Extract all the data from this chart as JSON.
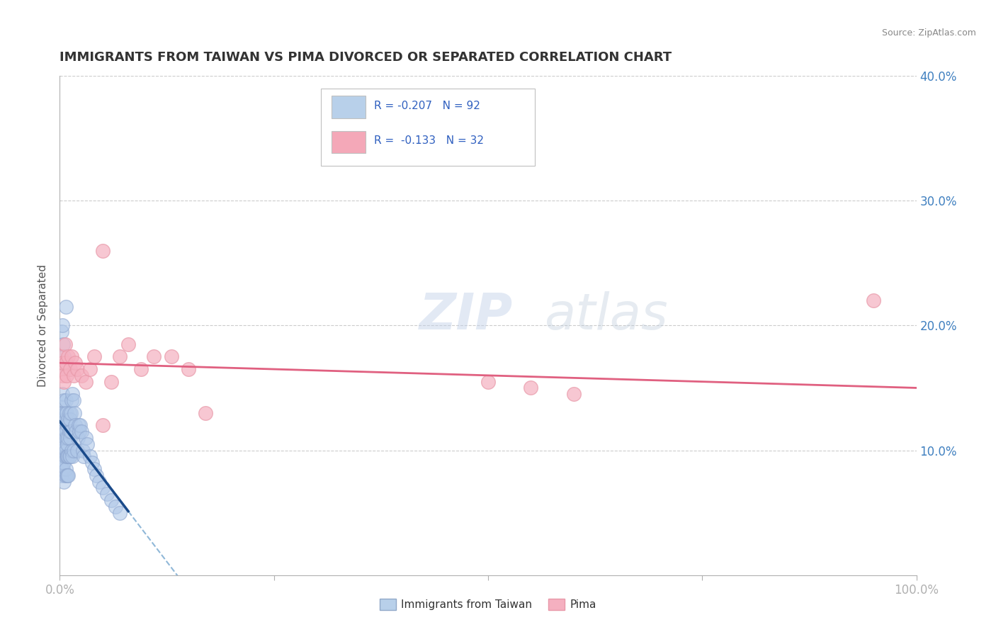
{
  "title": "IMMIGRANTS FROM TAIWAN VS PIMA DIVORCED OR SEPARATED CORRELATION CHART",
  "source": "Source: ZipAtlas.com",
  "ylabel": "Divorced or Separated",
  "legend_series": [
    {
      "label": "R = -0.207   N = 92",
      "color": "#b8d0ea"
    },
    {
      "label": "R =  -0.133   N = 32",
      "color": "#f4a8b8"
    }
  ],
  "legend_bottom": [
    {
      "label": "Immigrants from Taiwan",
      "color": "#b8d0ea"
    },
    {
      "label": "Pima",
      "color": "#f4a8b8"
    }
  ],
  "xlim": [
    0.0,
    1.0
  ],
  "ylim": [
    0.0,
    0.4
  ],
  "xticks": [
    0.0,
    0.25,
    0.5,
    0.75,
    1.0
  ],
  "xticklabels": [
    "0.0%",
    "",
    "",
    "",
    "100.0%"
  ],
  "ytick_positions": [
    0.1,
    0.2,
    0.3,
    0.4
  ],
  "ytick_labels": [
    "10.0%",
    "20.0%",
    "30.0%",
    "40.0%"
  ],
  "background_color": "#ffffff",
  "grid_color": "#cccccc",
  "blue_scatter_x": [
    0.001,
    0.001,
    0.001,
    0.001,
    0.001,
    0.002,
    0.002,
    0.002,
    0.002,
    0.002,
    0.002,
    0.003,
    0.003,
    0.003,
    0.003,
    0.003,
    0.003,
    0.004,
    0.004,
    0.004,
    0.004,
    0.004,
    0.005,
    0.005,
    0.005,
    0.005,
    0.005,
    0.006,
    0.006,
    0.006,
    0.006,
    0.006,
    0.007,
    0.007,
    0.007,
    0.007,
    0.007,
    0.008,
    0.008,
    0.008,
    0.008,
    0.009,
    0.009,
    0.009,
    0.009,
    0.01,
    0.01,
    0.01,
    0.01,
    0.011,
    0.011,
    0.011,
    0.012,
    0.012,
    0.012,
    0.013,
    0.013,
    0.014,
    0.014,
    0.015,
    0.015,
    0.016,
    0.016,
    0.017,
    0.018,
    0.019,
    0.02,
    0.021,
    0.022,
    0.023,
    0.024,
    0.025,
    0.027,
    0.028,
    0.03,
    0.032,
    0.035,
    0.038,
    0.04,
    0.043,
    0.046,
    0.05,
    0.055,
    0.06,
    0.065,
    0.07,
    0.002,
    0.003,
    0.004,
    0.005,
    0.006,
    0.007
  ],
  "blue_scatter_y": [
    0.11,
    0.12,
    0.135,
    0.095,
    0.09,
    0.1,
    0.115,
    0.125,
    0.09,
    0.08,
    0.105,
    0.12,
    0.13,
    0.145,
    0.095,
    0.085,
    0.11,
    0.115,
    0.1,
    0.085,
    0.13,
    0.09,
    0.125,
    0.14,
    0.105,
    0.09,
    0.075,
    0.115,
    0.13,
    0.095,
    0.08,
    0.11,
    0.125,
    0.14,
    0.1,
    0.085,
    0.115,
    0.13,
    0.095,
    0.08,
    0.11,
    0.12,
    0.105,
    0.095,
    0.08,
    0.125,
    0.11,
    0.095,
    0.08,
    0.13,
    0.115,
    0.095,
    0.125,
    0.11,
    0.095,
    0.13,
    0.115,
    0.14,
    0.1,
    0.145,
    0.095,
    0.14,
    0.1,
    0.13,
    0.12,
    0.115,
    0.1,
    0.11,
    0.12,
    0.115,
    0.12,
    0.115,
    0.1,
    0.095,
    0.11,
    0.105,
    0.095,
    0.09,
    0.085,
    0.08,
    0.075,
    0.07,
    0.065,
    0.06,
    0.055,
    0.05,
    0.195,
    0.2,
    0.185,
    0.175,
    0.165,
    0.215
  ],
  "pink_scatter_x": [
    0.001,
    0.002,
    0.003,
    0.004,
    0.005,
    0.006,
    0.007,
    0.008,
    0.01,
    0.012,
    0.014,
    0.016,
    0.018,
    0.02,
    0.025,
    0.03,
    0.035,
    0.04,
    0.05,
    0.06,
    0.07,
    0.08,
    0.095,
    0.11,
    0.13,
    0.15,
    0.17,
    0.05,
    0.5,
    0.55,
    0.6,
    0.95
  ],
  "pink_scatter_y": [
    0.175,
    0.165,
    0.16,
    0.17,
    0.155,
    0.185,
    0.17,
    0.16,
    0.175,
    0.165,
    0.175,
    0.16,
    0.17,
    0.165,
    0.16,
    0.155,
    0.165,
    0.175,
    0.12,
    0.155,
    0.175,
    0.185,
    0.165,
    0.175,
    0.175,
    0.165,
    0.13,
    0.26,
    0.155,
    0.15,
    0.145,
    0.22
  ],
  "blue_line_color": "#1a4a8a",
  "blue_line_dash_color": "#90b8d8",
  "pink_line_color": "#e06080",
  "title_color": "#333333",
  "tick_label_color": "#4080c0",
  "blue_line_solid_end_x": 0.08,
  "pink_line_y_start": 0.17,
  "pink_line_y_end": 0.15
}
